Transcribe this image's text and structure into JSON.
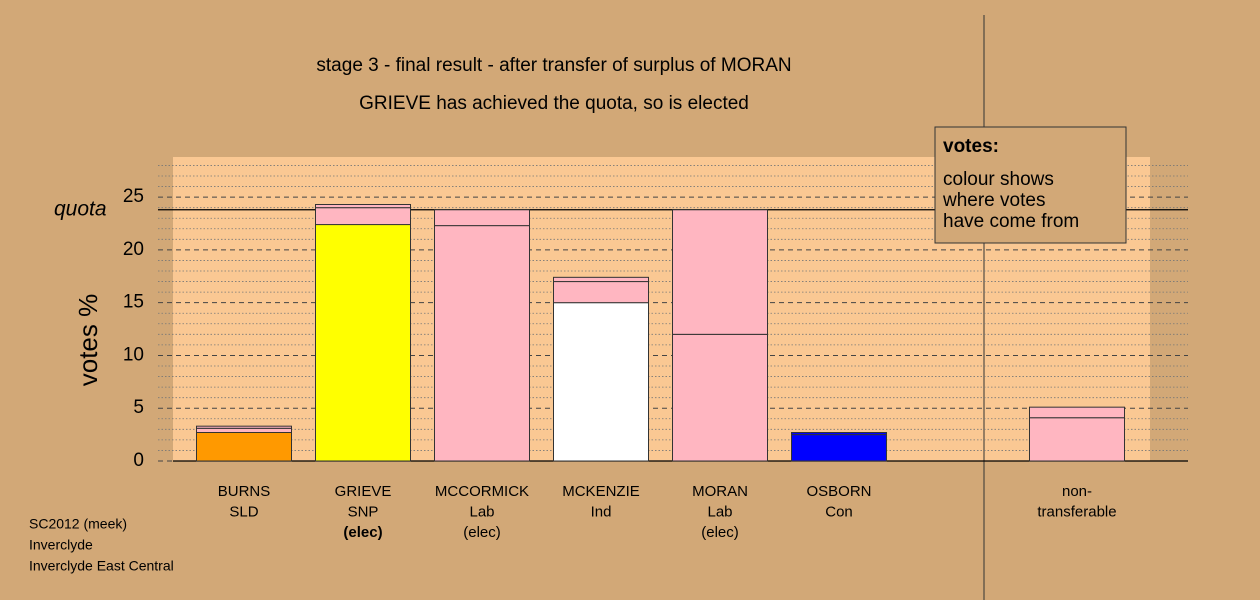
{
  "chart_data": {
    "type": "stacked-bar",
    "title": "stage 3 - final result - after transfer of surplus of MORAN",
    "subtitle": "GRIEVE has achieved the quota, so is elected",
    "y_label": "votes %",
    "quota_label": "quota",
    "quota": 23.8,
    "ylim": [
      0,
      28.8
    ],
    "yticks": [
      0,
      5,
      10,
      15,
      20,
      25
    ],
    "minor_yticks": [
      1,
      2,
      3,
      4,
      6,
      7,
      8,
      9,
      11,
      12,
      13,
      14,
      16,
      17,
      18,
      19,
      21,
      22,
      23,
      24,
      26,
      27,
      28
    ],
    "categories": [
      {
        "lines": [
          "BURNS",
          "SLD"
        ],
        "segments": [
          {
            "value": 2.7,
            "color": "#ff9900"
          },
          {
            "value": 0.4,
            "color": "#ffb6c1"
          },
          {
            "value": 0.2,
            "color": "#ffb6c1"
          }
        ]
      },
      {
        "lines": [
          "GRIEVE",
          "SNP"
        ],
        "bold_line": "(elec)",
        "segments": [
          {
            "value": 22.4,
            "color": "#ffff00"
          },
          {
            "value": 1.6,
            "color": "#ffb6c1"
          },
          {
            "value": 0.3,
            "color": "#ffb6c1"
          }
        ]
      },
      {
        "lines": [
          "MCCORMICK",
          "Lab",
          "(elec)"
        ],
        "segments": [
          {
            "value": 22.3,
            "color": "#ffb6c1"
          },
          {
            "value": 1.5,
            "color": "#ffb6c1"
          }
        ]
      },
      {
        "lines": [
          "MCKENZIE",
          "Ind"
        ],
        "segments": [
          {
            "value": 15.0,
            "color": "#ffffff"
          },
          {
            "value": 2.0,
            "color": "#ffb6c1"
          },
          {
            "value": 0.4,
            "color": "#ffb6c1"
          }
        ]
      },
      {
        "lines": [
          "MORAN",
          "Lab",
          "(elec)"
        ],
        "segments": [
          {
            "value": 12.0,
            "color": "#ffb6c1"
          },
          {
            "value": 11.8,
            "color": "#ffb6c1"
          }
        ]
      },
      {
        "lines": [
          "OSBORN",
          "Con"
        ],
        "segments": [
          {
            "value": 2.5,
            "color": "#0000ff"
          },
          {
            "value": 0.2,
            "color": "#0000ff"
          }
        ]
      },
      null,
      {
        "lines": [
          "non-",
          "transferable"
        ],
        "segments": [
          {
            "value": 4.1,
            "color": "#ffb6c1"
          },
          {
            "value": 1.0,
            "color": "#ffb6c1"
          }
        ]
      }
    ],
    "legend": {
      "heading": "votes:",
      "lines": [
        "colour shows",
        "where votes",
        "have come from"
      ]
    },
    "footnote": [
      "SC2012 (meek)",
      "Inverclyde",
      "Inverclyde East Central"
    ]
  }
}
